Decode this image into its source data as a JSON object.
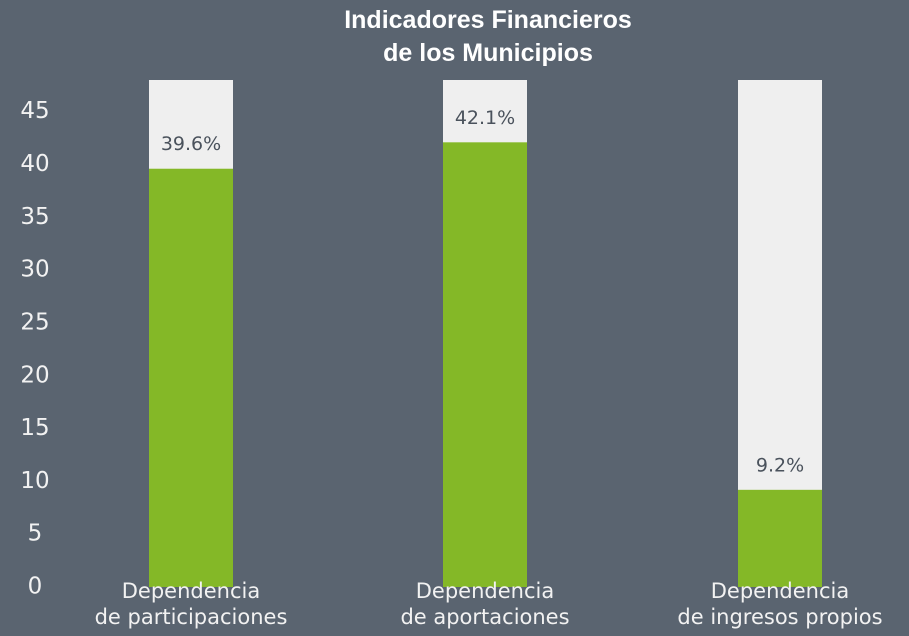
{
  "chart_data": {
    "type": "bar",
    "title": "Indicadores Financieros\nde los Municipios",
    "categories": [
      "Dependencia\nde participaciones",
      "Dependencia\nde aportaciones",
      "Dependencia\nde ingresos propios"
    ],
    "values": [
      39.6,
      42.1,
      9.2
    ],
    "value_labels": [
      "39.6%",
      "42.1%",
      "9.2%"
    ],
    "color": "#84b827",
    "track_color": "#efefef",
    "ylim": [
      0,
      48
    ],
    "yticks": [
      0,
      5,
      10,
      15,
      20,
      25,
      30,
      35,
      40,
      45
    ]
  }
}
